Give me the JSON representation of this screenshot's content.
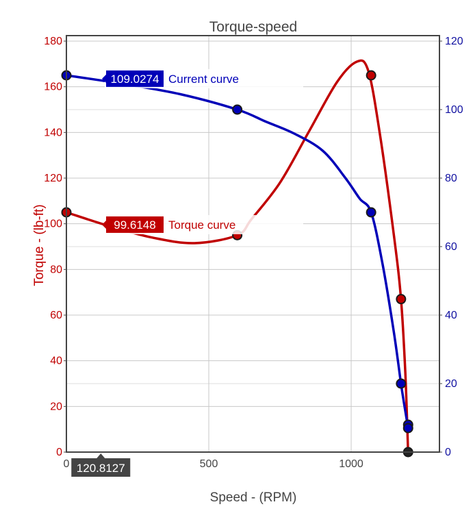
{
  "chart_data": {
    "type": "line",
    "title": "Torque-speed",
    "xlabel": "Speed - (RPM)",
    "ylabel_left": "Torque - (lb-ft)",
    "ylabel_right": "",
    "xlim": [
      0,
      1310
    ],
    "ylim_left": [
      0,
      180
    ],
    "ylim_right": [
      0,
      120
    ],
    "x_ticks": [
      "0",
      "500",
      "1000"
    ],
    "x_tick_values": [
      0,
      500,
      1000
    ],
    "y_left_ticks": [
      0,
      20,
      40,
      60,
      80,
      100,
      120,
      140,
      160,
      180
    ],
    "y_right_ticks": [
      0,
      20,
      40,
      60,
      80,
      100,
      120
    ],
    "grid": true,
    "colors": {
      "torque": "#c00000",
      "current": "#0000b8",
      "axis": "#444444",
      "grid": "#c8c8c8"
    },
    "series": [
      {
        "name": "Torque curve",
        "axis": "left",
        "points": [
          {
            "x": 0,
            "y": 105
          },
          {
            "x": 600,
            "y": 95
          },
          {
            "x": 1070,
            "y": 165
          },
          {
            "x": 1175,
            "y": 67
          },
          {
            "x": 1200,
            "y": 0
          }
        ],
        "curve": [
          [
            0,
            105
          ],
          [
            150,
            99
          ],
          [
            300,
            94
          ],
          [
            450,
            91.5
          ],
          [
            600,
            95
          ],
          [
            650,
            102
          ],
          [
            750,
            118
          ],
          [
            850,
            140
          ],
          [
            950,
            162
          ],
          [
            1020,
            171
          ],
          [
            1060,
            167
          ],
          [
            1100,
            140
          ],
          [
            1150,
            95
          ],
          [
            1175,
            67
          ],
          [
            1190,
            35
          ],
          [
            1200,
            0
          ]
        ]
      },
      {
        "name": "Current curve",
        "axis": "right",
        "points": [
          {
            "x": 0,
            "y": 110
          },
          {
            "x": 600,
            "y": 100
          },
          {
            "x": 1070,
            "y": 70
          },
          {
            "x": 1175,
            "y": 20
          },
          {
            "x": 1200,
            "y": 8
          },
          {
            "x": 1200,
            "y": 7
          }
        ],
        "curve": [
          [
            0,
            110
          ],
          [
            200,
            107.5
          ],
          [
            400,
            104.5
          ],
          [
            600,
            100
          ],
          [
            700,
            96.5
          ],
          [
            800,
            93
          ],
          [
            900,
            88
          ],
          [
            980,
            80
          ],
          [
            1030,
            74
          ],
          [
            1070,
            70
          ],
          [
            1110,
            55
          ],
          [
            1150,
            35
          ],
          [
            1175,
            20
          ],
          [
            1190,
            12
          ],
          [
            1200,
            7
          ]
        ]
      }
    ],
    "hover": {
      "x_label": "120.8127",
      "x_value": 120.8127,
      "current_value_label": "109.0274",
      "current_value": 109.0274,
      "current_name": "Current curve",
      "torque_value_label": "99.6148",
      "torque_value": 99.6148,
      "torque_name": "Torque curve"
    }
  }
}
